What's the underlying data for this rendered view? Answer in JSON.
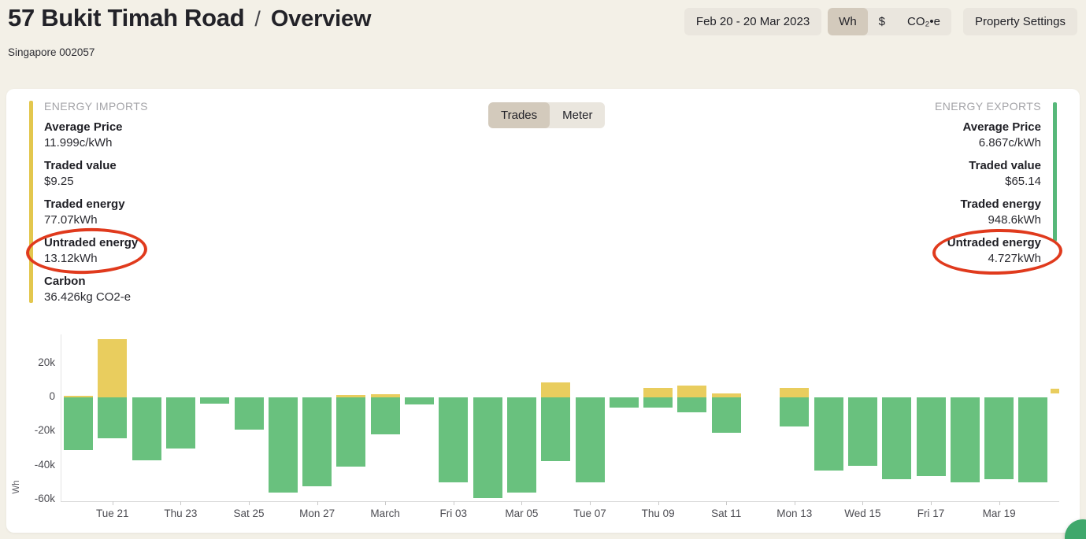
{
  "colors": {
    "page_bg": "#f3f0e7",
    "card_bg": "#ffffff",
    "accent_import": "#e3c74e",
    "accent_export": "#57b87a",
    "bar_import": "#e9cd5e",
    "bar_export": "#69c17e",
    "annotation_red": "#e03a1d",
    "button_bg": "#eae6de",
    "button_selected_bg": "#d3cabc",
    "fab_green": "#3fa86c"
  },
  "header": {
    "title": "57 Bukit Timah Road",
    "breadcrumb_separator": "/",
    "section": "Overview",
    "subtitle": "Singapore 002057",
    "date_range_label": "Feb 20 - 20 Mar 2023",
    "unit_segments": [
      {
        "label": "Wh",
        "selected": true
      },
      {
        "label": "$",
        "selected": false
      },
      {
        "label": "CO₂•e",
        "selected": false
      }
    ],
    "property_settings_label": "Property Settings"
  },
  "card": {
    "imports": {
      "heading": "ENERGY IMPORTS",
      "stats": [
        {
          "label": "Average Price",
          "value": "11.999c/kWh"
        },
        {
          "label": "Traded value",
          "value": "$9.25"
        },
        {
          "label": "Traded energy",
          "value": "77.07kWh"
        },
        {
          "label": "Untraded energy",
          "value": "13.12kWh",
          "annotated": true
        },
        {
          "label": "Carbon",
          "value": "36.426kg CO2-e"
        }
      ]
    },
    "exports": {
      "heading": "ENERGY EXPORTS",
      "stats": [
        {
          "label": "Average Price",
          "value": "6.867c/kWh"
        },
        {
          "label": "Traded value",
          "value": "$65.14"
        },
        {
          "label": "Traded energy",
          "value": "948.6kWh"
        },
        {
          "label": "Untraded energy",
          "value": "4.727kWh",
          "annotated": true
        }
      ]
    },
    "view_segments": [
      {
        "label": "Trades",
        "selected": true
      },
      {
        "label": "Meter",
        "selected": false
      }
    ]
  },
  "chart_data": {
    "type": "bar",
    "stacked": true,
    "title": "",
    "xlabel": "",
    "ylabel": "Wh",
    "ylim": [
      -61000,
      37000
    ],
    "grid": false,
    "legend_position": "none",
    "yticks": [
      {
        "label": "20k",
        "value": 20000
      },
      {
        "label": "0",
        "value": 0
      },
      {
        "label": "-20k",
        "value": -20000
      },
      {
        "label": "-40k",
        "value": -40000
      },
      {
        "label": "-60k",
        "value": -60000
      }
    ],
    "xticks": [
      {
        "index": 1,
        "label": "Tue 21"
      },
      {
        "index": 3,
        "label": "Thu 23"
      },
      {
        "index": 5,
        "label": "Sat 25"
      },
      {
        "index": 7,
        "label": "Mon 27"
      },
      {
        "index": 9,
        "label": "March"
      },
      {
        "index": 11,
        "label": "Fri 03"
      },
      {
        "index": 13,
        "label": "Mar 05"
      },
      {
        "index": 15,
        "label": "Tue 07"
      },
      {
        "index": 17,
        "label": "Thu 09"
      },
      {
        "index": 19,
        "label": "Sat 11"
      },
      {
        "index": 21,
        "label": "Mon 13"
      },
      {
        "index": 23,
        "label": "Wed 15"
      },
      {
        "index": 25,
        "label": "Fri 17"
      },
      {
        "index": 27,
        "label": "Mar 19"
      }
    ],
    "series": [
      {
        "name": "imports",
        "color": "#e9cd5e",
        "values": [
          1000,
          34000,
          0,
          0,
          0,
          0,
          0,
          0,
          1200,
          1800,
          0,
          0,
          0,
          0,
          9000,
          0,
          0,
          5700,
          6900,
          2300,
          0,
          5700,
          0,
          0,
          0,
          0,
          0,
          0,
          0
        ]
      },
      {
        "name": "exports",
        "color": "#69c17e",
        "values": [
          -31000,
          -24000,
          -37000,
          -30000,
          -3500,
          -19000,
          -56000,
          -52000,
          -40500,
          -21500,
          -4300,
          -50000,
          -59000,
          -56000,
          -37500,
          -50000,
          -6000,
          -6200,
          -9000,
          -21000,
          0,
          -17000,
          -43000,
          -40000,
          -48000,
          -46000,
          -50000,
          -48000,
          -50000
        ]
      }
    ],
    "clipped_partial_bar": {
      "color": "#e9cd5e",
      "top_wh": 5200,
      "bottom_wh": 2500
    }
  }
}
